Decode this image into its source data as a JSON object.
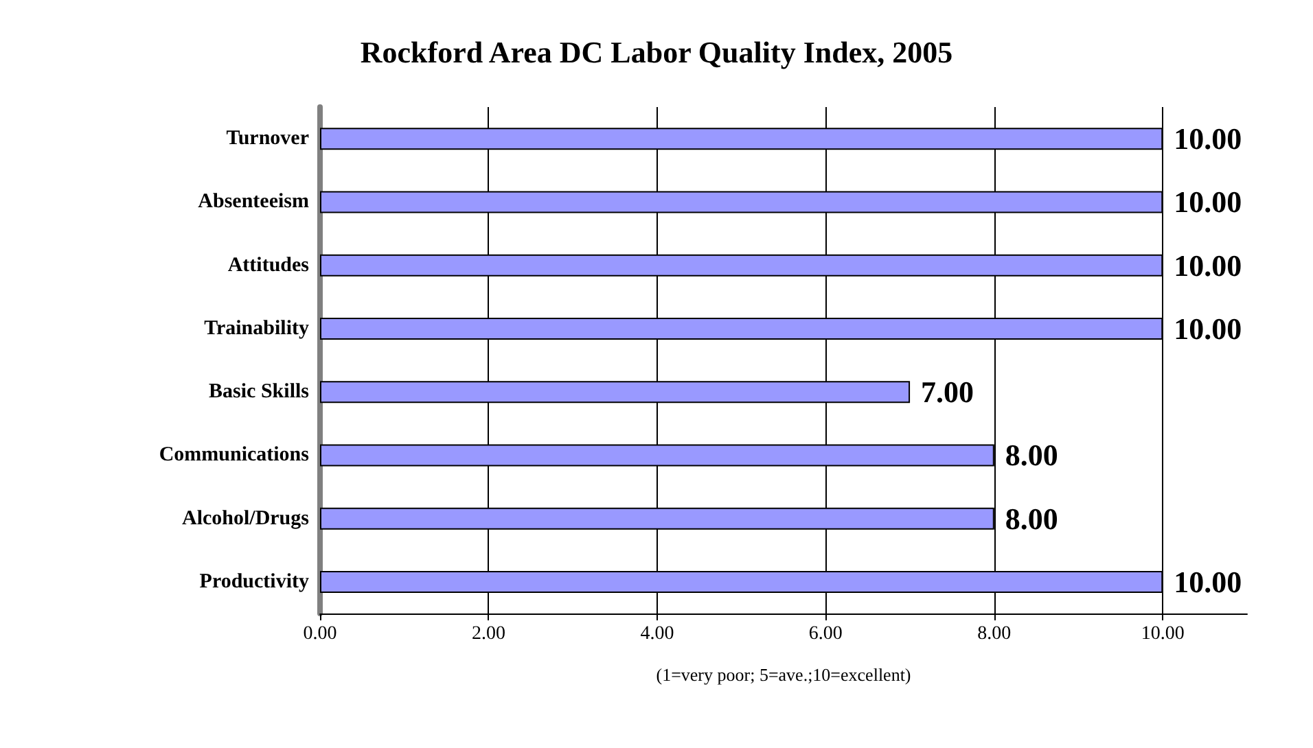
{
  "chart_data": {
    "type": "bar",
    "orientation": "horizontal",
    "title": "Rockford Area DC Labor Quality Index, 2005",
    "xlabel": "(1=very poor; 5=ave.;10=excellent)",
    "categories": [
      "Turnover",
      "Absenteeism",
      "Attitudes",
      "Trainability",
      "Basic Skills",
      "Communications",
      "Alcohol/Drugs",
      "Productivity"
    ],
    "values": [
      10,
      10,
      10,
      10,
      7,
      8,
      8,
      10
    ],
    "value_labels": [
      "10.00",
      "10.00",
      "10.00",
      "10.00",
      "7.00",
      "8.00",
      "8.00",
      "10.00"
    ],
    "color": "#9999ff",
    "xlim": [
      0,
      11
    ],
    "xticks": [
      {
        "value": 0,
        "label": "0.00"
      },
      {
        "value": 2,
        "label": "2.00"
      },
      {
        "value": 4,
        "label": "4.00"
      },
      {
        "value": 6,
        "label": "6.00"
      },
      {
        "value": 8,
        "label": "8.00"
      },
      {
        "value": 10,
        "label": "10.00"
      }
    ],
    "grid": "x"
  }
}
